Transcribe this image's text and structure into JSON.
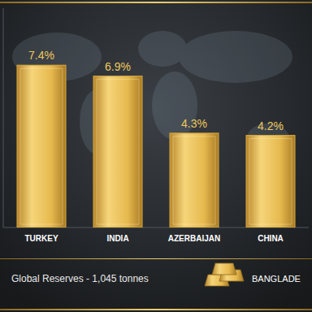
{
  "chart_data": {
    "type": "bar",
    "categories": [
      "TURKEY",
      "INDIA",
      "AZERBAIJAN",
      "CHINA"
    ],
    "values": [
      7.4,
      6.9,
      4.3,
      4.2
    ],
    "value_labels": [
      "7.4%",
      "6.9%",
      "4.3%",
      "4.2%"
    ],
    "color": "#d9aa3f",
    "ylim": [
      0,
      10
    ],
    "data_labels": true,
    "tick_labels": "x",
    "grid": false,
    "annotations": [
      "Global Reserves - 1,045 tonnes",
      "BANGLADE"
    ]
  }
}
